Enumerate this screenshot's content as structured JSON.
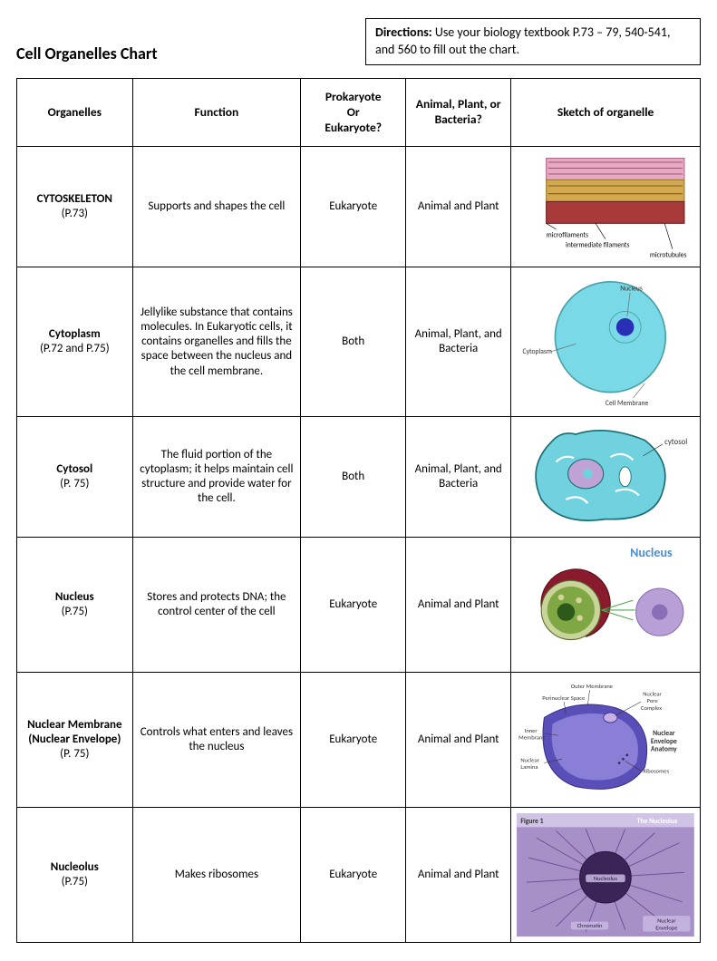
{
  "title": "Cell Organelles Chart",
  "directions_label": "Directions:",
  "directions_text": " Use your biology textbook P.73 – 79, 540-541, and 560 to fill out the chart.",
  "columns": [
    "Organelles",
    "Function",
    "Prokaryote\nOr\nEukaryote?",
    "Animal, Plant, or Bacteria?",
    "Sketch of organelle"
  ],
  "rows": [
    {
      "org_name": "CYTOSKELETON",
      "org_ref": "(P.73)",
      "func": "Supports and shapes the cell",
      "pk": "Eukaryote",
      "dom": "Animal and Plant",
      "sketch_labels": [
        "microfilaments",
        "intermediate filaments",
        "microtubules"
      ],
      "colors": {
        "layer1": "#e8a7c2",
        "layer2": "#d4a84e",
        "layer3": "#a83a3a",
        "border": "#6b3b2a"
      }
    },
    {
      "org_name": "Cytoplasm",
      "org_ref": "(P.72 and P.75)",
      "func": "Jellylike substance that contains molecules. In Eukaryotic cells, it contains organelles and fills the space between the nucleus and the cell membrane.",
      "pk": "Both",
      "dom": "Animal, Plant, and Bacteria",
      "sketch_labels": [
        "Nucleus",
        "Cytoplasm",
        "Cell Membrane"
      ],
      "colors": {
        "cyto": "#7ad9e6",
        "nucleus": "#2a2fb8",
        "outline": "#4aa0a8"
      }
    },
    {
      "org_name": "Cytosol",
      "org_ref": "(P. 75)",
      "func": "The fluid portion of the cytoplasm; it helps maintain cell structure and provide water for the cell.",
      "pk": "Both",
      "dom": "Animal, Plant, and Bacteria",
      "sketch_labels": [
        "cytosol"
      ],
      "colors": {
        "cyto": "#6fd2de",
        "organelle": "#ffffff",
        "outline": "#1a6b73",
        "nuc": "#bfa3d6"
      }
    },
    {
      "org_name": "Nucleus",
      "org_ref": "(P.75)",
      "func": "Stores and protects DNA; the control center of the cell",
      "pk": "Eukaryote",
      "dom": "Animal and Plant",
      "sketch_labels": [
        "Nucleus"
      ],
      "colors": {
        "title": "#4a8fd6",
        "shell": "#8a1a2e",
        "inner": "#7fa845",
        "nucleolus": "#2d5a1a",
        "simple": "#b8a0d6"
      }
    },
    {
      "org_name": "Nuclear Membrane (Nuclear Envelope)",
      "org_ref": "(P. 75)",
      "func": "Controls what enters and leaves the nucleus",
      "pk": "Eukaryote",
      "dom": "Animal and Plant",
      "sketch_labels": [
        "Outer Membrane",
        "Perinuclear Space",
        "Inner Membrane",
        "Nuclear Lamina",
        "Nuclear Pore Complex",
        "Nuclear Envelope Anatomy",
        "Ribosomes"
      ],
      "colors": {
        "membrane": "#5a4fb8",
        "inner": "#8a7fd6",
        "text": "#333"
      }
    },
    {
      "org_name": "Nucleolus",
      "org_ref": "(P.75)",
      "func": "Makes ribosomes",
      "pk": "Eukaryote",
      "dom": "Animal and Plant",
      "sketch_labels": [
        "Figure 1",
        "The Nucleolus",
        "Nucleolus",
        "Chromatin",
        "Nuclear Envelope"
      ],
      "colors": {
        "bg": "#a78fc8",
        "nucleolus": "#3a2458",
        "chromatin": "#6b4a8f"
      }
    }
  ]
}
